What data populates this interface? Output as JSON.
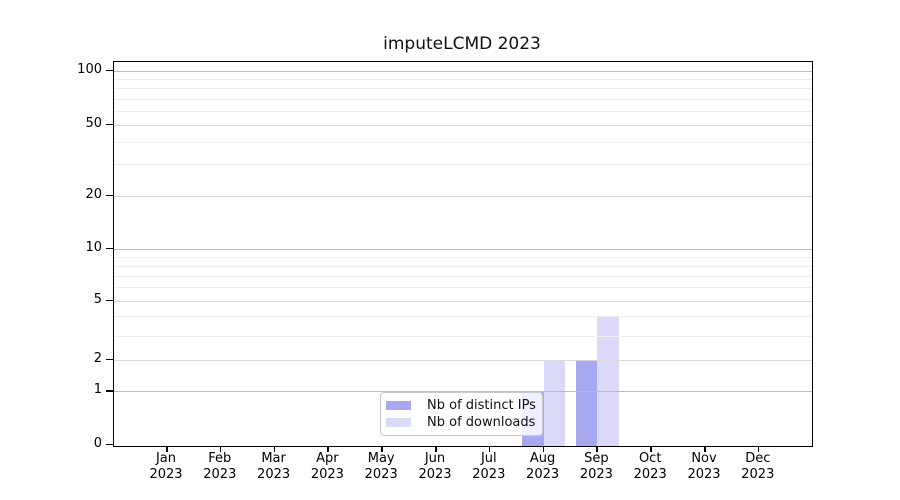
{
  "title": "imputeLCMD 2023",
  "chart_data": {
    "type": "bar",
    "title": "imputeLCMD 2023",
    "xlabel": "",
    "ylabel": "",
    "categories": [
      "Jan 2023",
      "Feb 2023",
      "Mar 2023",
      "Apr 2023",
      "May 2023",
      "Jun 2023",
      "Jul 2023",
      "Aug 2023",
      "Sep 2023",
      "Oct 2023",
      "Nov 2023",
      "Dec 2023"
    ],
    "series": [
      {
        "name": "Nb of distinct IPs",
        "color": "#a8a8f0",
        "values": [
          0,
          0,
          0,
          0,
          0,
          0,
          0,
          1,
          2,
          0,
          0,
          0
        ]
      },
      {
        "name": "Nb of downloads",
        "color": "#dadaf8",
        "values": [
          0,
          0,
          0,
          0,
          0,
          0,
          0,
          2,
          4,
          0,
          0,
          0
        ]
      }
    ],
    "y_axis": {
      "scale": "log-like (asinh), linear stub to 0",
      "tick_labels": [
        100,
        50,
        20,
        10,
        5,
        2,
        1,
        0
      ],
      "gridlines_decade": [
        1,
        10,
        100
      ],
      "gridlines_labeled_minor": [
        2,
        5,
        20,
        50
      ],
      "gridlines_minor": [
        3,
        4,
        6,
        7,
        8,
        9,
        30,
        40,
        60,
        70,
        80,
        90
      ],
      "ylim": [
        0,
        115
      ]
    },
    "grid": true,
    "grid_over_bars": true,
    "legend": {
      "position": "bottom-center",
      "entries": [
        "Nb of distinct IPs",
        "Nb of downloads"
      ]
    },
    "frame_color": "#000000",
    "background_color": "#ffffff"
  }
}
